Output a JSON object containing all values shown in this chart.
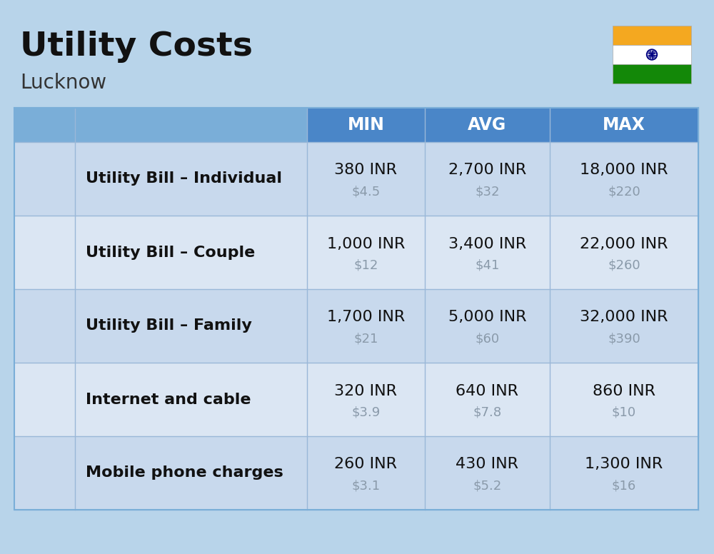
{
  "title": "Utility Costs",
  "subtitle": "Lucknow",
  "background_color": "#b8d4ea",
  "header_bg_color": "#4a86c8",
  "header_left_bg": "#7aaed8",
  "row_bg_odd": "#c8d9ed",
  "row_bg_even": "#dbe6f3",
  "header_text_color": "#ffffff",
  "cell_text_color": "#111111",
  "usd_text_color": "#8a9aaa",
  "col_headers": [
    "MIN",
    "AVG",
    "MAX"
  ],
  "rows": [
    {
      "label": "Utility Bill – Individual",
      "min_inr": "380 INR",
      "min_usd": "$4.5",
      "avg_inr": "2,700 INR",
      "avg_usd": "$32",
      "max_inr": "18,000 INR",
      "max_usd": "$220"
    },
    {
      "label": "Utility Bill – Couple",
      "min_inr": "1,000 INR",
      "min_usd": "$12",
      "avg_inr": "3,400 INR",
      "avg_usd": "$41",
      "max_inr": "22,000 INR",
      "max_usd": "$260"
    },
    {
      "label": "Utility Bill – Family",
      "min_inr": "1,700 INR",
      "min_usd": "$21",
      "avg_inr": "5,000 INR",
      "avg_usd": "$60",
      "max_inr": "32,000 INR",
      "max_usd": "$390"
    },
    {
      "label": "Internet and cable",
      "min_inr": "320 INR",
      "min_usd": "$3.9",
      "avg_inr": "640 INR",
      "avg_usd": "$7.8",
      "max_inr": "860 INR",
      "max_usd": "$10"
    },
    {
      "label": "Mobile phone charges",
      "min_inr": "260 INR",
      "min_usd": "$3.1",
      "avg_inr": "430 INR",
      "avg_usd": "$5.2",
      "max_inr": "1,300 INR",
      "max_usd": "$16"
    }
  ],
  "title_fontsize": 34,
  "subtitle_fontsize": 20,
  "header_fontsize": 17,
  "label_fontsize": 16,
  "value_fontsize": 16,
  "usd_fontsize": 13,
  "flag_colors": [
    "#f4a820",
    "#ffffff",
    "#138808"
  ],
  "divider_color": "#9ab8d8",
  "border_color": "#7aaed8"
}
